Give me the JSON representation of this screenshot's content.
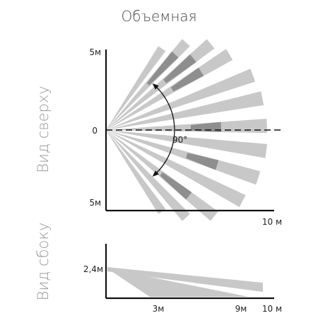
{
  "title": "Объемная",
  "top_view": {
    "side_label": "Вид сверху",
    "y_top_label": "5м",
    "y_mid_label": "0",
    "y_bottom_label": "5м",
    "x_end_label": "10 м",
    "angle_label": "90°",
    "beam_count": 12
  },
  "side_view": {
    "side_label": "Вид сбоку",
    "height_label": "2,4м",
    "x_labels": [
      "3м",
      "9м",
      "10 м"
    ]
  },
  "colors": {
    "beam_light": "#c8c8c8",
    "beam_dark": "#8e8e8e",
    "axis": "#111111"
  }
}
